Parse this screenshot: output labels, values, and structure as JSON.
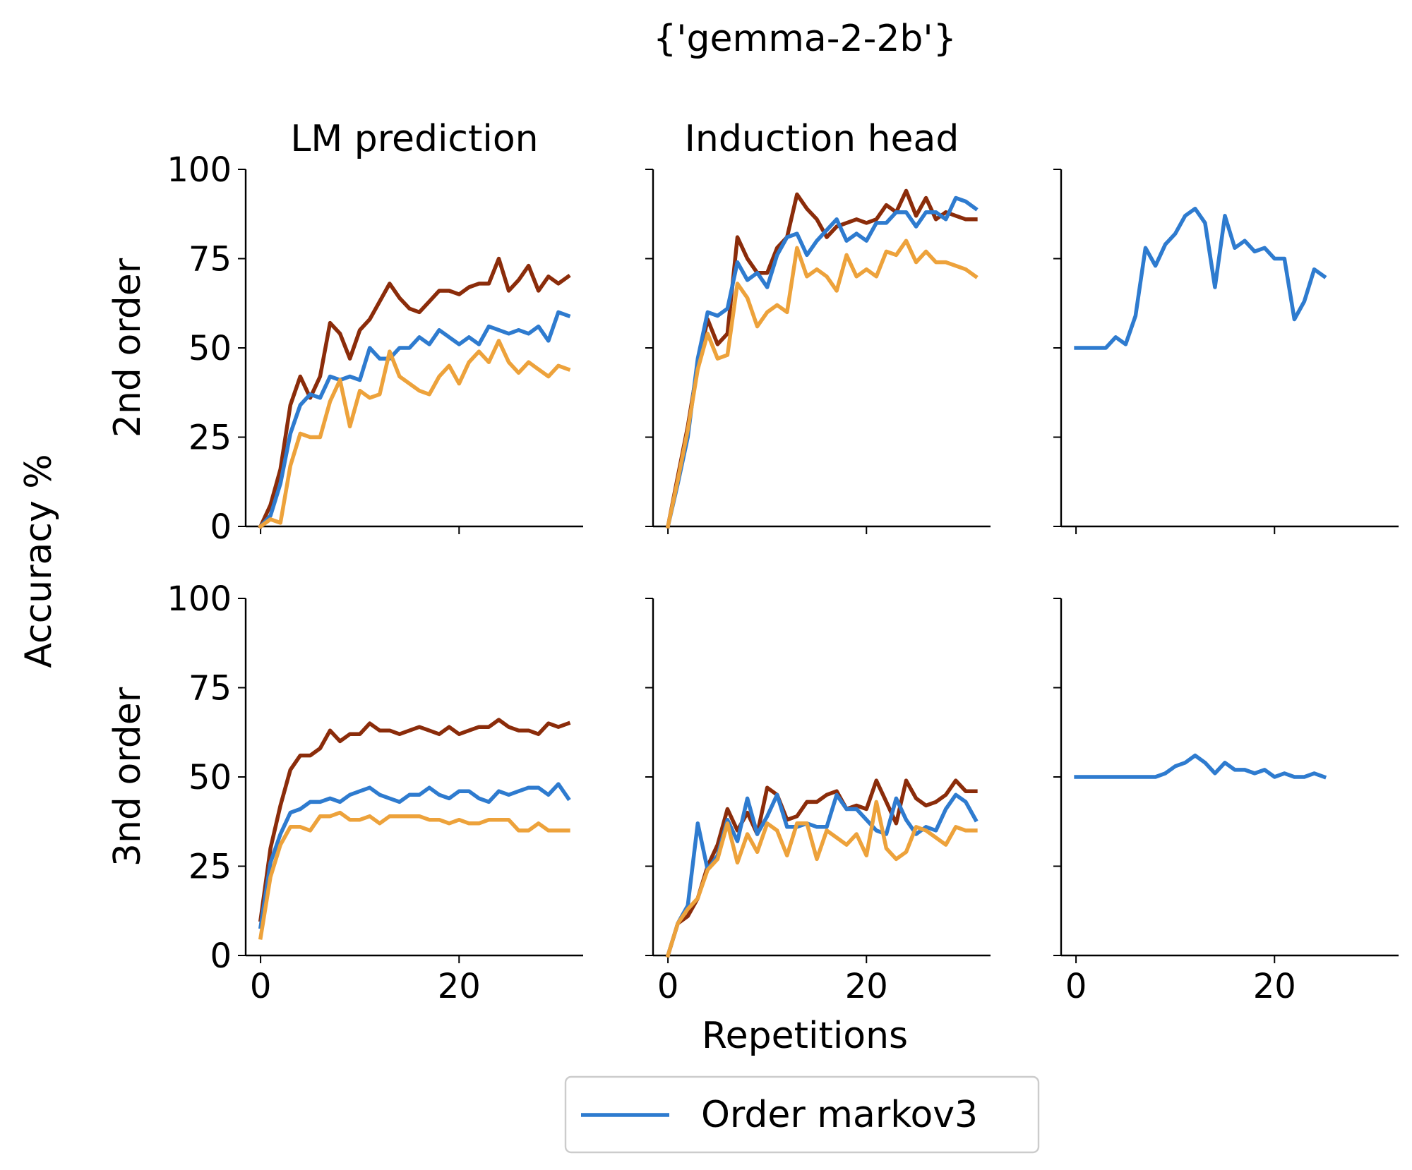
{
  "figure": {
    "suptitle": "{'gemma-2-2b'}",
    "xlabel": "Repetitions",
    "ylabel": "Accuracy %",
    "row_labels": [
      "2nd order",
      "3nd order"
    ],
    "col_titles": [
      "LM prediction",
      "Induction head",
      ""
    ],
    "legend": [
      {
        "label": "Order markov3",
        "color": "#2e7bcf"
      }
    ]
  },
  "chart_data": [
    {
      "type": "line",
      "title": "LM prediction",
      "row_label": "2nd order",
      "xlim": [
        -1.5,
        32.5
      ],
      "ylim": [
        0,
        100
      ],
      "xticks": [
        0,
        20
      ],
      "yticks": [
        0,
        25,
        50,
        75,
        100
      ],
      "grid": false,
      "series": [
        {
          "color": "#8b2c0a",
          "x": [
            0,
            1,
            2,
            3,
            4,
            5,
            6,
            7,
            8,
            9,
            10,
            11,
            12,
            13,
            14,
            15,
            16,
            17,
            18,
            19,
            20,
            21,
            22,
            23,
            24,
            25,
            26,
            27,
            28,
            29,
            30,
            31
          ],
          "y": [
            0,
            6,
            16,
            34,
            42,
            36,
            42,
            57,
            54,
            47,
            55,
            58,
            63,
            68,
            64,
            61,
            60,
            63,
            66,
            66,
            65,
            67,
            68,
            68,
            75,
            66,
            69,
            73,
            66,
            70,
            68,
            70
          ]
        },
        {
          "name": "Order markov3",
          "color": "#2e7bcf",
          "x": [
            0,
            1,
            2,
            3,
            4,
            5,
            6,
            7,
            8,
            9,
            10,
            11,
            12,
            13,
            14,
            15,
            16,
            17,
            18,
            19,
            20,
            21,
            22,
            23,
            24,
            25,
            26,
            27,
            28,
            29,
            30,
            31
          ],
          "y": [
            0,
            3,
            12,
            26,
            34,
            37,
            36,
            42,
            41,
            42,
            41,
            50,
            47,
            47,
            50,
            50,
            53,
            51,
            55,
            53,
            51,
            53,
            51,
            56,
            55,
            54,
            55,
            54,
            56,
            52,
            60,
            59
          ]
        },
        {
          "color": "#eda23b",
          "x": [
            0,
            1,
            2,
            3,
            4,
            5,
            6,
            7,
            8,
            9,
            10,
            11,
            12,
            13,
            14,
            15,
            16,
            17,
            18,
            19,
            20,
            21,
            22,
            23,
            24,
            25,
            26,
            27,
            28,
            29,
            30,
            31
          ],
          "y": [
            0,
            2,
            1,
            17,
            26,
            25,
            25,
            35,
            41,
            28,
            38,
            36,
            37,
            49,
            42,
            40,
            38,
            37,
            42,
            45,
            40,
            46,
            49,
            46,
            52,
            46,
            43,
            46,
            44,
            42,
            45,
            44
          ]
        }
      ]
    },
    {
      "type": "line",
      "title": "Induction head",
      "row_label": "2nd order",
      "xlim": [
        -1.5,
        32.5
      ],
      "ylim": [
        0,
        100
      ],
      "xticks": [
        0,
        20
      ],
      "yticks": [
        0,
        25,
        50,
        75,
        100
      ],
      "grid": false,
      "series": [
        {
          "color": "#8b2c0a",
          "x": [
            0,
            1,
            2,
            3,
            4,
            5,
            6,
            7,
            8,
            9,
            10,
            11,
            12,
            13,
            14,
            15,
            16,
            17,
            18,
            19,
            20,
            21,
            22,
            23,
            24,
            25,
            26,
            27,
            28,
            29,
            30,
            31
          ],
          "y": [
            0,
            14,
            28,
            45,
            58,
            51,
            54,
            81,
            75,
            71,
            71,
            78,
            81,
            93,
            89,
            86,
            81,
            84,
            85,
            86,
            85,
            86,
            90,
            88,
            94,
            87,
            92,
            86,
            88,
            87,
            86,
            86
          ]
        },
        {
          "name": "Order markov3",
          "color": "#2e7bcf",
          "x": [
            0,
            1,
            2,
            3,
            4,
            5,
            6,
            7,
            8,
            9,
            10,
            11,
            12,
            13,
            14,
            15,
            16,
            17,
            18,
            19,
            20,
            21,
            22,
            23,
            24,
            25,
            26,
            27,
            28,
            29,
            30,
            31
          ],
          "y": [
            0,
            12,
            25,
            47,
            60,
            59,
            61,
            74,
            69,
            71,
            67,
            76,
            81,
            82,
            76,
            80,
            83,
            86,
            80,
            82,
            80,
            85,
            85,
            88,
            88,
            84,
            88,
            88,
            86,
            92,
            91,
            89
          ]
        },
        {
          "color": "#eda23b",
          "x": [
            0,
            1,
            2,
            3,
            4,
            5,
            6,
            7,
            8,
            9,
            10,
            11,
            12,
            13,
            14,
            15,
            16,
            17,
            18,
            19,
            20,
            21,
            22,
            23,
            24,
            25,
            26,
            27,
            28,
            29,
            30,
            31
          ],
          "y": [
            0,
            13,
            27,
            44,
            54,
            47,
            48,
            68,
            64,
            56,
            60,
            62,
            60,
            78,
            70,
            72,
            70,
            66,
            76,
            70,
            72,
            70,
            77,
            76,
            80,
            74,
            77,
            74,
            74,
            73,
            72,
            70
          ]
        }
      ]
    },
    {
      "type": "line",
      "title": "",
      "row_label": "2nd order",
      "xlim": [
        -1.5,
        32.5
      ],
      "ylim": [
        0,
        100
      ],
      "xticks": [
        0,
        20
      ],
      "yticks": [
        0,
        25,
        50,
        75,
        100
      ],
      "grid": false,
      "series": [
        {
          "name": "Order markov3",
          "color": "#2e7bcf",
          "x": [
            0,
            1,
            2,
            3,
            4,
            5,
            6,
            7,
            8,
            9,
            10,
            11,
            12,
            13,
            14,
            15,
            16,
            17,
            18,
            19,
            20,
            21,
            22,
            23,
            24,
            25
          ],
          "y": [
            50,
            50,
            50,
            50,
            53,
            51,
            59,
            78,
            73,
            79,
            82,
            87,
            89,
            85,
            67,
            87,
            78,
            80,
            77,
            78,
            75,
            75,
            58,
            63,
            72,
            70
          ]
        }
      ]
    },
    {
      "type": "line",
      "title": "",
      "row_label": "3nd order",
      "xlim": [
        -1.5,
        32.5
      ],
      "ylim": [
        0,
        100
      ],
      "xticks": [
        0,
        20
      ],
      "yticks": [
        0,
        25,
        50,
        75,
        100
      ],
      "grid": false,
      "series": [
        {
          "color": "#8b2c0a",
          "x": [
            0,
            1,
            2,
            3,
            4,
            5,
            6,
            7,
            8,
            9,
            10,
            11,
            12,
            13,
            14,
            15,
            16,
            17,
            18,
            19,
            20,
            21,
            22,
            23,
            24,
            25,
            26,
            27,
            28,
            29,
            30,
            31
          ],
          "y": [
            10,
            30,
            42,
            52,
            56,
            56,
            58,
            63,
            60,
            62,
            62,
            65,
            63,
            63,
            62,
            63,
            64,
            63,
            62,
            64,
            62,
            63,
            64,
            64,
            66,
            64,
            63,
            63,
            62,
            65,
            64,
            65
          ]
        },
        {
          "name": "Order markov3",
          "color": "#2e7bcf",
          "x": [
            0,
            1,
            2,
            3,
            4,
            5,
            6,
            7,
            8,
            9,
            10,
            11,
            12,
            13,
            14,
            15,
            16,
            17,
            18,
            19,
            20,
            21,
            22,
            23,
            24,
            25,
            26,
            27,
            28,
            29,
            30,
            31
          ],
          "y": [
            8,
            26,
            34,
            40,
            41,
            43,
            43,
            44,
            43,
            45,
            46,
            47,
            45,
            44,
            43,
            45,
            45,
            47,
            45,
            44,
            46,
            46,
            44,
            43,
            46,
            45,
            46,
            47,
            47,
            45,
            48,
            44
          ]
        },
        {
          "color": "#eda23b",
          "x": [
            0,
            1,
            2,
            3,
            4,
            5,
            6,
            7,
            8,
            9,
            10,
            11,
            12,
            13,
            14,
            15,
            16,
            17,
            18,
            19,
            20,
            21,
            22,
            23,
            24,
            25,
            26,
            27,
            28,
            29,
            30,
            31
          ],
          "y": [
            5,
            22,
            31,
            36,
            36,
            35,
            39,
            39,
            40,
            38,
            38,
            39,
            37,
            39,
            39,
            39,
            39,
            38,
            38,
            37,
            38,
            37,
            37,
            38,
            38,
            38,
            35,
            35,
            37,
            35,
            35,
            35
          ]
        }
      ]
    },
    {
      "type": "line",
      "title": "",
      "row_label": "3nd order",
      "xlim": [
        -1.5,
        32.5
      ],
      "ylim": [
        0,
        100
      ],
      "xticks": [
        0,
        20
      ],
      "yticks": [
        0,
        25,
        50,
        75,
        100
      ],
      "grid": false,
      "series": [
        {
          "color": "#8b2c0a",
          "x": [
            0,
            1,
            2,
            3,
            4,
            5,
            6,
            7,
            8,
            9,
            10,
            11,
            12,
            13,
            14,
            15,
            16,
            17,
            18,
            19,
            20,
            21,
            22,
            23,
            24,
            25,
            26,
            27,
            28,
            29,
            30,
            31
          ],
          "y": [
            0,
            9,
            11,
            16,
            25,
            31,
            41,
            35,
            40,
            34,
            47,
            45,
            38,
            39,
            43,
            43,
            45,
            46,
            41,
            42,
            41,
            49,
            43,
            37,
            49,
            44,
            42,
            43,
            45,
            49,
            46,
            46
          ]
        },
        {
          "name": "Order markov3",
          "color": "#2e7bcf",
          "x": [
            0,
            1,
            2,
            3,
            4,
            5,
            6,
            7,
            8,
            9,
            10,
            11,
            12,
            13,
            14,
            15,
            16,
            17,
            18,
            19,
            20,
            21,
            22,
            23,
            24,
            25,
            26,
            27,
            28,
            29,
            30,
            31
          ],
          "y": [
            0,
            9,
            14,
            37,
            24,
            28,
            38,
            32,
            44,
            34,
            39,
            45,
            36,
            36,
            37,
            36,
            36,
            45,
            41,
            41,
            38,
            35,
            34,
            44,
            38,
            34,
            36,
            35,
            41,
            45,
            43,
            38
          ]
        },
        {
          "color": "#eda23b",
          "x": [
            0,
            1,
            2,
            3,
            4,
            5,
            6,
            7,
            8,
            9,
            10,
            11,
            12,
            13,
            14,
            15,
            16,
            17,
            18,
            19,
            20,
            21,
            22,
            23,
            24,
            25,
            26,
            27,
            28,
            29,
            30,
            31
          ],
          "y": [
            0,
            9,
            13,
            16,
            24,
            27,
            37,
            26,
            34,
            29,
            37,
            35,
            28,
            37,
            37,
            27,
            35,
            33,
            31,
            34,
            28,
            43,
            30,
            27,
            29,
            36,
            35,
            33,
            31,
            36,
            35,
            35
          ]
        }
      ]
    },
    {
      "type": "line",
      "title": "",
      "row_label": "3nd order",
      "xlim": [
        -1.5,
        32.5
      ],
      "ylim": [
        0,
        100
      ],
      "xticks": [
        0,
        20
      ],
      "yticks": [
        0,
        25,
        50,
        75,
        100
      ],
      "grid": false,
      "series": [
        {
          "name": "Order markov3",
          "color": "#2e7bcf",
          "x": [
            0,
            1,
            2,
            3,
            4,
            5,
            6,
            7,
            8,
            9,
            10,
            11,
            12,
            13,
            14,
            15,
            16,
            17,
            18,
            19,
            20,
            21,
            22,
            23,
            24,
            25
          ],
          "y": [
            50,
            50,
            50,
            50,
            50,
            50,
            50,
            50,
            50,
            51,
            53,
            54,
            56,
            54,
            51,
            54,
            52,
            52,
            51,
            52,
            50,
            51,
            50,
            50,
            51,
            50
          ]
        }
      ]
    }
  ]
}
